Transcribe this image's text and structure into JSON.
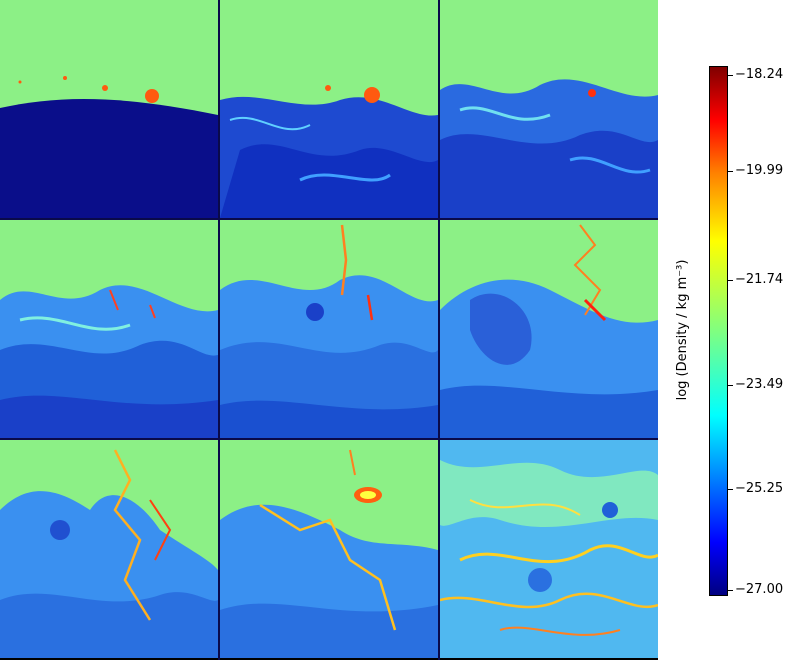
{
  "colorbar": {
    "label": "log (Density / kg m⁻³)",
    "ticks": [
      "−18.24",
      "−19.99",
      "−21.74",
      "−23.49",
      "−25.25",
      "−27.00"
    ],
    "range": [
      -27.0,
      -18.24
    ],
    "colormap": [
      "#800000",
      "#ff0000",
      "#ff8000",
      "#ffff00",
      "#80ff80",
      "#00ffff",
      "#0080ff",
      "#0000ff",
      "#000080"
    ]
  },
  "panels": {
    "count": 9,
    "layout": "3x3",
    "background_color": "#8cf086"
  }
}
